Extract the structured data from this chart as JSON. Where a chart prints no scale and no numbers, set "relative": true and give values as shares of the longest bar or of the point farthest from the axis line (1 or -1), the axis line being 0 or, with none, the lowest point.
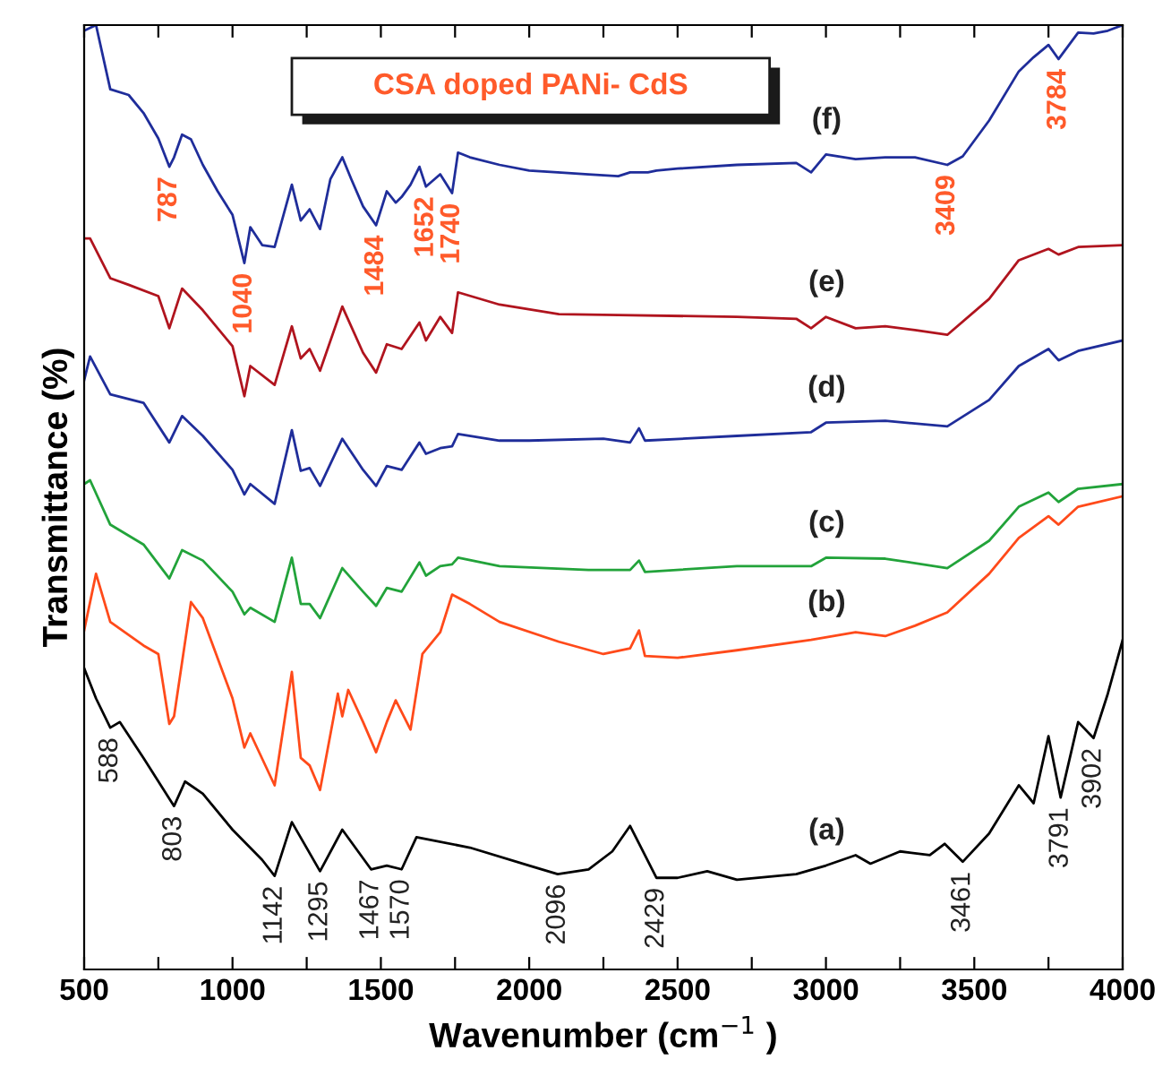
{
  "chart_data": {
    "type": "line",
    "relative": true,
    "title": "CSA doped PANi- CdS",
    "xlabel": "Wavenumber (cm$^{−1}$ )",
    "ylabel": "Transmittance (%)",
    "xlim": [
      500,
      4000
    ],
    "xticks": [
      500,
      {
        "value": 750,
        "label": null
      },
      1000,
      {
        "value": 1250,
        "label": null
      },
      1500,
      {
        "value": 1750,
        "label": null
      },
      2000,
      {
        "value": 2250,
        "label": null
      },
      2500,
      {
        "value": 2750,
        "label": null
      },
      3000,
      {
        "value": 3250,
        "label": null
      },
      3500,
      {
        "value": 3750,
        "label": null
      },
      4000
    ],
    "tick_labels": "x",
    "grid": false,
    "legend": false,
    "marker": "none",
    "line_style": "solid",
    "series": [
      {
        "name": "(f)",
        "color": "#1f2d9a",
        "x": [
          500,
          540,
          588,
          650,
          700,
          750,
          787,
          803,
          830,
          860,
          900,
          950,
          1000,
          1040,
          1060,
          1100,
          1142,
          1200,
          1230,
          1260,
          1295,
          1330,
          1370,
          1400,
          1440,
          1484,
          1520,
          1550,
          1570,
          1600,
          1630,
          1652,
          1700,
          1740,
          1760,
          1800,
          1900,
          2000,
          2096,
          2200,
          2300,
          2340,
          2370,
          2400,
          2429,
          2500,
          2700,
          2900,
          2950,
          3000,
          3100,
          3200,
          3300,
          3409,
          3461,
          3550,
          3650,
          3700,
          3750,
          3784,
          3850,
          3902,
          3950,
          4000
        ],
        "values": [
          0.994,
          1.0,
          0.932,
          0.926,
          0.907,
          0.88,
          0.85,
          0.86,
          0.884,
          0.879,
          0.852,
          0.824,
          0.799,
          0.748,
          0.786,
          0.767,
          0.765,
          0.831,
          0.793,
          0.805,
          0.784,
          0.837,
          0.86,
          0.837,
          0.808,
          0.788,
          0.824,
          0.812,
          0.818,
          0.831,
          0.85,
          0.829,
          0.842,
          0.822,
          0.865,
          0.86,
          0.852,
          0.846,
          0.844,
          0.842,
          0.84,
          0.844,
          0.844,
          0.844,
          0.846,
          0.848,
          0.852,
          0.854,
          0.844,
          0.863,
          0.858,
          0.86,
          0.86,
          0.852,
          0.861,
          0.899,
          0.951,
          0.966,
          0.979,
          0.964,
          0.992,
          0.991,
          0.994,
          1.0
        ]
      },
      {
        "name": "(e)",
        "color": "#b0141e",
        "x": [
          500,
          520,
          588,
          650,
          750,
          787,
          830,
          900,
          1000,
          1040,
          1060,
          1142,
          1200,
          1230,
          1260,
          1295,
          1370,
          1440,
          1484,
          1520,
          1570,
          1630,
          1652,
          1700,
          1740,
          1760,
          1900,
          2100,
          2300,
          2700,
          2900,
          2950,
          3000,
          3100,
          3200,
          3300,
          3409,
          3550,
          3650,
          3750,
          3784,
          3850,
          4000
        ],
        "values": [
          0.774,
          0.774,
          0.732,
          0.725,
          0.713,
          0.679,
          0.721,
          0.698,
          0.66,
          0.607,
          0.639,
          0.619,
          0.681,
          0.647,
          0.657,
          0.634,
          0.702,
          0.653,
          0.632,
          0.662,
          0.657,
          0.685,
          0.666,
          0.691,
          0.674,
          0.717,
          0.704,
          0.694,
          0.693,
          0.691,
          0.689,
          0.679,
          0.691,
          0.679,
          0.681,
          0.677,
          0.672,
          0.71,
          0.751,
          0.763,
          0.757,
          0.765,
          0.767
        ]
      },
      {
        "name": "(d)",
        "color": "#1f2d9a",
        "x": [
          500,
          520,
          588,
          700,
          787,
          830,
          900,
          1000,
          1040,
          1060,
          1142,
          1200,
          1230,
          1260,
          1295,
          1370,
          1440,
          1484,
          1520,
          1570,
          1630,
          1652,
          1700,
          1740,
          1760,
          1900,
          2000,
          2250,
          2340,
          2370,
          2390,
          2700,
          2950,
          3000,
          3200,
          3409,
          3550,
          3650,
          3750,
          3784,
          3850,
          4000
        ],
        "values": [
          0.624,
          0.649,
          0.609,
          0.6,
          0.558,
          0.586,
          0.565,
          0.529,
          0.503,
          0.514,
          0.493,
          0.571,
          0.528,
          0.531,
          0.512,
          0.562,
          0.529,
          0.512,
          0.533,
          0.529,
          0.558,
          0.546,
          0.552,
          0.554,
          0.567,
          0.56,
          0.56,
          0.562,
          0.558,
          0.573,
          0.56,
          0.565,
          0.569,
          0.579,
          0.581,
          0.575,
          0.603,
          0.639,
          0.657,
          0.645,
          0.655,
          0.666
        ]
      },
      {
        "name": "(c)",
        "color": "#22a33a",
        "x": [
          500,
          520,
          588,
          700,
          787,
          830,
          900,
          1000,
          1040,
          1060,
          1142,
          1200,
          1230,
          1260,
          1295,
          1370,
          1440,
          1484,
          1520,
          1570,
          1630,
          1652,
          1700,
          1740,
          1760,
          1900,
          2200,
          2340,
          2370,
          2390,
          2700,
          2950,
          3000,
          3200,
          3409,
          3550,
          3650,
          3750,
          3784,
          3850,
          4000
        ],
        "values": [
          0.514,
          0.518,
          0.471,
          0.45,
          0.414,
          0.444,
          0.433,
          0.4,
          0.376,
          0.383,
          0.368,
          0.436,
          0.387,
          0.387,
          0.372,
          0.425,
          0.4,
          0.385,
          0.404,
          0.4,
          0.431,
          0.417,
          0.427,
          0.429,
          0.436,
          0.427,
          0.423,
          0.423,
          0.433,
          0.421,
          0.427,
          0.427,
          0.436,
          0.435,
          0.425,
          0.454,
          0.49,
          0.505,
          0.495,
          0.509,
          0.514
        ]
      },
      {
        "name": "(b)",
        "color": "#ff4a1a",
        "x": [
          500,
          540,
          588,
          700,
          750,
          787,
          803,
          860,
          900,
          1000,
          1040,
          1060,
          1142,
          1200,
          1230,
          1260,
          1295,
          1340,
          1355,
          1370,
          1390,
          1440,
          1484,
          1520,
          1550,
          1600,
          1640,
          1700,
          1740,
          1800,
          1900,
          2100,
          2250,
          2340,
          2370,
          2390,
          2500,
          2700,
          2950,
          3100,
          3200,
          3300,
          3409,
          3550,
          3650,
          3750,
          3784,
          3850,
          4000
        ],
        "values": [
          0.359,
          0.419,
          0.368,
          0.343,
          0.334,
          0.26,
          0.268,
          0.389,
          0.372,
          0.287,
          0.235,
          0.25,
          0.195,
          0.315,
          0.224,
          0.216,
          0.19,
          0.266,
          0.292,
          0.268,
          0.296,
          0.262,
          0.23,
          0.262,
          0.285,
          0.254,
          0.334,
          0.357,
          0.397,
          0.387,
          0.368,
          0.347,
          0.334,
          0.34,
          0.359,
          0.332,
          0.33,
          0.338,
          0.349,
          0.357,
          0.353,
          0.364,
          0.378,
          0.419,
          0.457,
          0.48,
          0.471,
          0.49,
          0.501
        ]
      },
      {
        "name": "(a)",
        "color": "#000000",
        "x": [
          500,
          540,
          588,
          620,
          700,
          803,
          840,
          900,
          1000,
          1100,
          1142,
          1200,
          1295,
          1370,
          1467,
          1520,
          1570,
          1620,
          1800,
          2000,
          2096,
          2200,
          2280,
          2340,
          2429,
          2500,
          2600,
          2700,
          2900,
          3000,
          3100,
          3150,
          3250,
          3350,
          3400,
          3461,
          3550,
          3650,
          3700,
          3750,
          3791,
          3850,
          3902,
          3950,
          4000
        ],
        "values": [
          0.319,
          0.287,
          0.256,
          0.262,
          0.224,
          0.173,
          0.199,
          0.186,
          0.148,
          0.116,
          0.099,
          0.156,
          0.104,
          0.148,
          0.106,
          0.11,
          0.106,
          0.14,
          0.129,
          0.11,
          0.101,
          0.106,
          0.125,
          0.152,
          0.097,
          0.097,
          0.104,
          0.095,
          0.101,
          0.11,
          0.121,
          0.112,
          0.125,
          0.121,
          0.133,
          0.114,
          0.144,
          0.195,
          0.176,
          0.247,
          0.182,
          0.262,
          0.245,
          0.292,
          0.349
        ]
      }
    ],
    "annotations": [
      {
        "text": "787",
        "x": 787,
        "y": 0.85
      },
      {
        "text": "1040",
        "x": 1040,
        "y": 0.748
      },
      {
        "text": "1484",
        "x": 1484,
        "y": 0.788
      },
      {
        "text": "1652",
        "x": 1652,
        "y": 0.829
      },
      {
        "text": "1740",
        "x": 1740,
        "y": 0.822
      },
      {
        "text": "3409",
        "x": 3409,
        "y": 0.852
      },
      {
        "text": "3784",
        "x": 3784,
        "y": 0.964
      },
      {
        "text": "588",
        "x": 588,
        "y": 0.256
      },
      {
        "text": "803",
        "x": 803,
        "y": 0.173
      },
      {
        "text": "1142",
        "x": 1142,
        "y": 0.099
      },
      {
        "text": "1295",
        "x": 1295,
        "y": 0.104
      },
      {
        "text": "1467",
        "x": 1467,
        "y": 0.106
      },
      {
        "text": "1570",
        "x": 1570,
        "y": 0.106
      },
      {
        "text": "2096",
        "x": 2096,
        "y": 0.101
      },
      {
        "text": "2429",
        "x": 2429,
        "y": 0.097
      },
      {
        "text": "3461",
        "x": 3461,
        "y": 0.114
      },
      {
        "text": "3791",
        "x": 3791,
        "y": 0.182
      },
      {
        "text": "3902",
        "x": 3902,
        "y": 0.245
      }
    ]
  }
}
